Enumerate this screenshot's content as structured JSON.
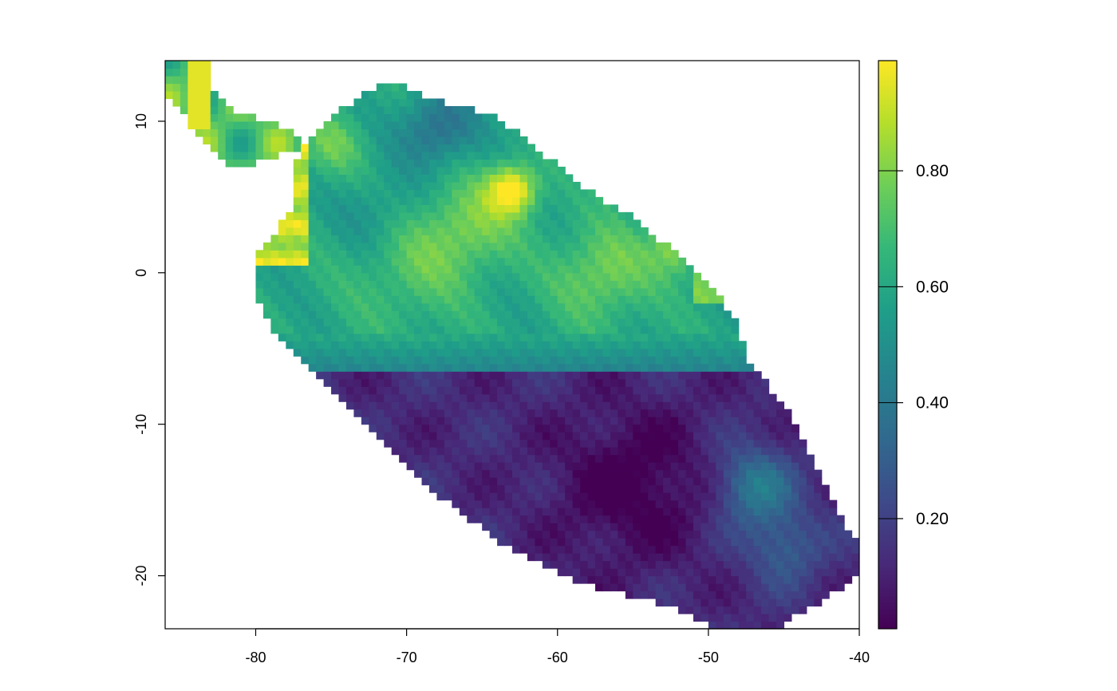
{
  "chart_data": {
    "type": "heatmap",
    "title": "",
    "xlabel": "",
    "ylabel": "",
    "xlim": [
      -86,
      -40
    ],
    "ylim": [
      -23.5,
      14
    ],
    "x_ticks": [
      {
        "value": -80,
        "label": "-80"
      },
      {
        "value": -70,
        "label": "-70"
      },
      {
        "value": -60,
        "label": "-60"
      },
      {
        "value": -50,
        "label": "-50"
      },
      {
        "value": -40,
        "label": "-40"
      }
    ],
    "y_ticks": [
      {
        "value": 10,
        "label": "10"
      },
      {
        "value": 0,
        "label": "0"
      },
      {
        "value": -10,
        "label": "-10"
      },
      {
        "value": -20,
        "label": "-20"
      }
    ],
    "colorbar": {
      "range": [
        0.01,
        0.99
      ],
      "ticks": [
        {
          "value": 0.2,
          "label": "0.20"
        },
        {
          "value": 0.4,
          "label": "0.40"
        },
        {
          "value": 0.6,
          "label": "0.60"
        },
        {
          "value": 0.8,
          "label": "0.80"
        }
      ],
      "palette": "viridis",
      "colors": [
        "#440154",
        "#482878",
        "#3e4989",
        "#31688e",
        "#26828e",
        "#1f9e89",
        "#35b779",
        "#6ece58",
        "#b5de2b",
        "#fde725"
      ]
    },
    "grid": false,
    "legend_position": "right"
  }
}
